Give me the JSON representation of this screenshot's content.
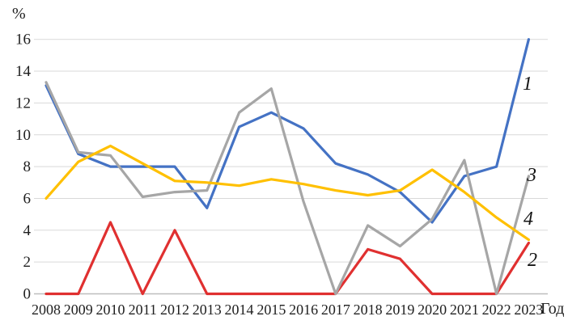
{
  "chart_data": {
    "type": "line",
    "title": "",
    "ylabel": "%",
    "xlabel": "Год",
    "categories": [
      "2008",
      "2009",
      "2010",
      "2011",
      "2012",
      "2013",
      "2014",
      "2015",
      "2016",
      "2017",
      "2018",
      "2019",
      "2020",
      "2021",
      "2022",
      "2023"
    ],
    "ylim": [
      0,
      16
    ],
    "ytick_step": 2,
    "grid": true,
    "legend_position": "end-of-line-numeric-labels",
    "gridline_color": "#d9d9d9",
    "axis_line_color": "#bdbdbd",
    "text_color": "#1f1f1f",
    "series": [
      {
        "name": "1",
        "color": "#4472c4",
        "values": [
          13.1,
          8.8,
          8.0,
          8.0,
          8.0,
          5.4,
          10.5,
          11.4,
          10.4,
          8.2,
          7.5,
          6.4,
          4.5,
          7.4,
          8.0,
          16.0
        ]
      },
      {
        "name": "2",
        "color": "#e03030",
        "values": [
          0,
          0,
          4.5,
          0,
          4.0,
          0,
          0,
          0,
          0,
          0,
          2.8,
          2.2,
          0,
          0,
          0,
          3.2
        ]
      },
      {
        "name": "3",
        "color": "#a6a6a6",
        "values": [
          13.3,
          8.9,
          8.7,
          6.1,
          6.4,
          6.5,
          11.4,
          12.9,
          5.8,
          0,
          4.3,
          3.0,
          4.7,
          8.4,
          0,
          7.4
        ]
      },
      {
        "name": "4",
        "color": "#ffc000",
        "values": [
          6.0,
          8.3,
          9.3,
          8.2,
          7.1,
          7.0,
          6.8,
          7.2,
          6.9,
          6.5,
          6.2,
          6.5,
          7.8,
          6.4,
          4.8,
          3.4
        ]
      }
    ]
  }
}
